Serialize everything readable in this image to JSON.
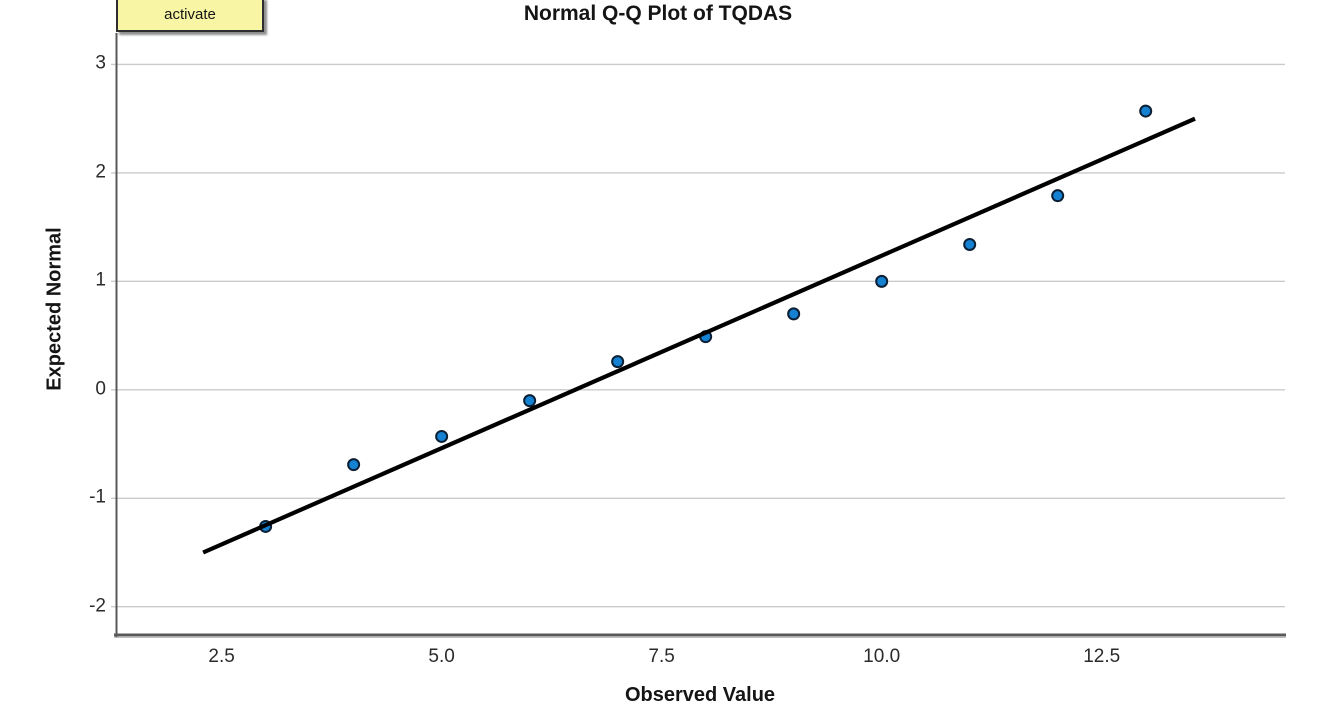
{
  "tooltip": {
    "label": "activate"
  },
  "chart_data": {
    "type": "scatter",
    "title": "Normal Q-Q Plot of TQDAS",
    "xlabel": "Observed Value",
    "ylabel": "Expected Normal",
    "x_ticks": [
      2.5,
      5.0,
      7.5,
      10.0,
      12.5
    ],
    "x_tick_labels": [
      "2.5",
      "5.0",
      "7.5",
      "10.0",
      "12.5"
    ],
    "y_ticks": [
      3,
      2,
      1,
      0,
      -1,
      -2
    ],
    "y_tick_labels": [
      "3",
      "2",
      "1",
      "0",
      "-1",
      "-2"
    ],
    "xlim": [
      1.3,
      14.56
    ],
    "ylim": [
      -2.27,
      3.29
    ],
    "grid": "horizontal-only",
    "legend": "none",
    "points": {
      "observed": [
        3,
        4,
        5,
        6,
        7,
        8,
        9,
        10,
        11,
        12,
        13
      ],
      "expected_normal": [
        -1.26,
        -0.69,
        -0.43,
        -0.1,
        0.26,
        0.49,
        0.7,
        1.0,
        1.34,
        1.79,
        2.57
      ]
    },
    "fit_line": {
      "x": [
        2.29,
        13.56
      ],
      "y": [
        -1.5,
        2.5
      ]
    },
    "colors": {
      "point_fill": "#1581d3",
      "point_border": "#0a1f33",
      "fit_line": "#000000",
      "grid": "#cbcbcb",
      "axis": "#595959",
      "axis_shadow": "#bdbdbd",
      "tooltip_bg": "#f8f6a4",
      "tooltip_border": "#2e2e2e"
    }
  }
}
